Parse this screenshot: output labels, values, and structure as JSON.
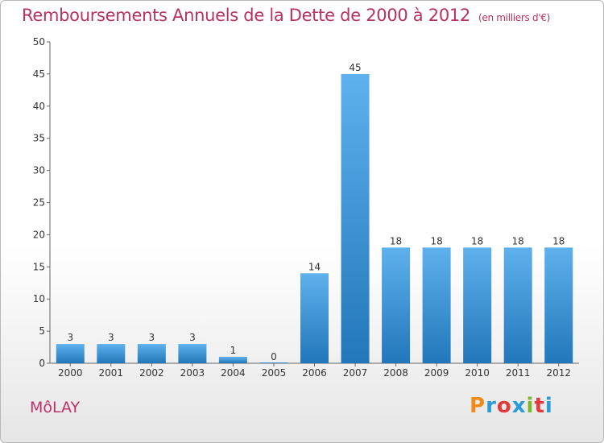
{
  "chart_data": {
    "type": "bar",
    "title": "Remboursements Annuels de la Dette de 2000 à 2012",
    "subtitle": "(en milliers d'€)",
    "categories": [
      "2000",
      "2001",
      "2002",
      "2003",
      "2004",
      "2005",
      "2006",
      "2007",
      "2008",
      "2009",
      "2010",
      "2011",
      "2012"
    ],
    "values": [
      3,
      3,
      3,
      3,
      1,
      0,
      14,
      45,
      18,
      18,
      18,
      18,
      18
    ],
    "ylim": [
      0,
      50
    ],
    "yticks": [
      0,
      5,
      10,
      15,
      20,
      25,
      30,
      35,
      40,
      45,
      50
    ],
    "grid": false,
    "bar_color": "#3a8fd6"
  },
  "footer": {
    "commune": "MôLAY",
    "logo_letters": [
      "P",
      "r",
      "o",
      "x",
      "i",
      "t",
      "i"
    ],
    "logo_colors": [
      "#f08a1c",
      "#2a9bd8",
      "#e03a3a",
      "#2a9bd8",
      "#7ab82b",
      "#e03a3a",
      "#2a9bd8"
    ]
  }
}
